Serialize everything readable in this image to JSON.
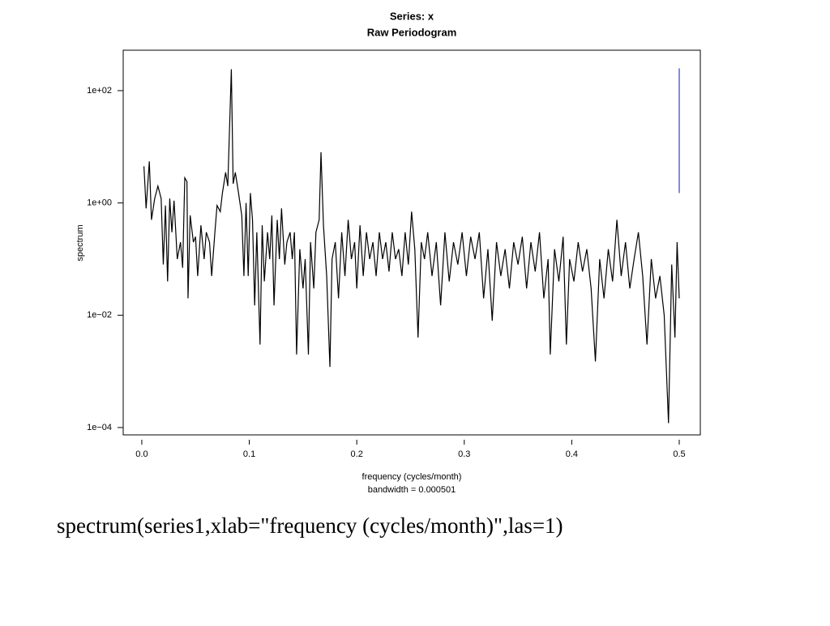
{
  "chart_data": {
    "type": "line",
    "title": "Series: x",
    "subtitle": "Raw Periodogram",
    "x_label": "frequency (cycles/month)",
    "annotation": "bandwidth = 0.000501",
    "y_label": "spectrum",
    "caption": "spectrum(series1,xlab=\"frequency (cycles/month)\",las=1)",
    "log_y": true,
    "color": "#000000",
    "xlim": [
      -0.0173,
      0.5196
    ],
    "ylim": [
      7.4e-05,
      525
    ],
    "xticks": [
      {
        "value": 0,
        "label": "0.0"
      },
      0.1,
      0.2,
      0.3,
      0.4,
      0.5
    ],
    "yticks": [
      {
        "value": 0.0001,
        "label": "1e−04"
      },
      {
        "value": 0.01,
        "label": "1e−02"
      },
      {
        "value": 1,
        "label": "1e+00"
      },
      {
        "value": 100,
        "label": "1e+02"
      }
    ],
    "ci_bar": {
      "x": 0.5,
      "low": 1.5,
      "high": 250,
      "color": "#3344aa"
    },
    "x": [
      0.002,
      0.004,
      0.007,
      0.009,
      0.012,
      0.015,
      0.018,
      0.02,
      0.022,
      0.024,
      0.026,
      0.028,
      0.03,
      0.033,
      0.036,
      0.038,
      0.04,
      0.042,
      0.043,
      0.045,
      0.048,
      0.05,
      0.052,
      0.055,
      0.058,
      0.06,
      0.063,
      0.065,
      0.068,
      0.07,
      0.073,
      0.075,
      0.078,
      0.08,
      0.0833,
      0.085,
      0.087,
      0.09,
      0.093,
      0.095,
      0.097,
      0.099,
      0.101,
      0.103,
      0.105,
      0.107,
      0.11,
      0.112,
      0.114,
      0.117,
      0.119,
      0.121,
      0.123,
      0.126,
      0.128,
      0.13,
      0.133,
      0.135,
      0.138,
      0.14,
      0.142,
      0.144,
      0.147,
      0.15,
      0.152,
      0.155,
      0.157,
      0.16,
      0.162,
      0.165,
      0.1667,
      0.169,
      0.172,
      0.175,
      0.177,
      0.18,
      0.183,
      0.186,
      0.189,
      0.192,
      0.195,
      0.198,
      0.2,
      0.203,
      0.206,
      0.209,
      0.212,
      0.215,
      0.218,
      0.221,
      0.224,
      0.227,
      0.23,
      0.233,
      0.236,
      0.239,
      0.242,
      0.245,
      0.248,
      0.251,
      0.254,
      0.257,
      0.26,
      0.263,
      0.266,
      0.27,
      0.274,
      0.278,
      0.282,
      0.286,
      0.29,
      0.294,
      0.298,
      0.302,
      0.306,
      0.31,
      0.314,
      0.318,
      0.322,
      0.326,
      0.33,
      0.334,
      0.338,
      0.342,
      0.346,
      0.35,
      0.354,
      0.358,
      0.362,
      0.366,
      0.37,
      0.374,
      0.378,
      0.38,
      0.384,
      0.388,
      0.392,
      0.395,
      0.398,
      0.402,
      0.406,
      0.41,
      0.414,
      0.418,
      0.422,
      0.426,
      0.43,
      0.434,
      0.438,
      0.442,
      0.446,
      0.45,
      0.454,
      0.458,
      0.462,
      0.466,
      0.47,
      0.474,
      0.478,
      0.482,
      0.486,
      0.49,
      0.493,
      0.496,
      0.498,
      0.5
    ],
    "values": [
      4.5,
      0.8,
      5.5,
      0.5,
      1.2,
      2,
      1.2,
      0.08,
      0.9,
      0.04,
      1.2,
      0.3,
      1.1,
      0.1,
      0.2,
      0.07,
      2.8,
      2.4,
      0.02,
      0.6,
      0.2,
      0.25,
      0.05,
      0.4,
      0.1,
      0.3,
      0.2,
      0.05,
      0.3,
      0.9,
      0.7,
      1.5,
      3.5,
      2,
      240,
      2.2,
      3.5,
      1.5,
      0.6,
      0.05,
      1,
      0.05,
      1.5,
      0.5,
      0.015,
      0.3,
      0.003,
      0.4,
      0.04,
      0.3,
      0.1,
      0.6,
      0.015,
      0.5,
      0.1,
      0.8,
      0.08,
      0.2,
      0.3,
      0.1,
      0.3,
      0.002,
      0.15,
      0.03,
      0.1,
      0.002,
      0.2,
      0.03,
      0.3,
      0.5,
      8,
      0.4,
      0.05,
      0.0012,
      0.1,
      0.2,
      0.02,
      0.3,
      0.05,
      0.5,
      0.1,
      0.2,
      0.03,
      0.4,
      0.05,
      0.3,
      0.1,
      0.2,
      0.05,
      0.3,
      0.1,
      0.2,
      0.06,
      0.3,
      0.1,
      0.15,
      0.05,
      0.3,
      0.08,
      0.7,
      0.15,
      0.004,
      0.2,
      0.1,
      0.3,
      0.05,
      0.2,
      0.015,
      0.3,
      0.04,
      0.2,
      0.08,
      0.3,
      0.05,
      0.25,
      0.1,
      0.3,
      0.02,
      0.15,
      0.008,
      0.2,
      0.05,
      0.15,
      0.03,
      0.2,
      0.08,
      0.25,
      0.03,
      0.2,
      0.06,
      0.3,
      0.02,
      0.1,
      0.002,
      0.15,
      0.04,
      0.25,
      0.003,
      0.1,
      0.04,
      0.2,
      0.06,
      0.15,
      0.03,
      0.0015,
      0.1,
      0.02,
      0.15,
      0.04,
      0.5,
      0.05,
      0.2,
      0.03,
      0.1,
      0.3,
      0.05,
      0.003,
      0.1,
      0.02,
      0.05,
      0.01,
      0.00012,
      0.08,
      0.004,
      0.2,
      0.02
    ]
  }
}
